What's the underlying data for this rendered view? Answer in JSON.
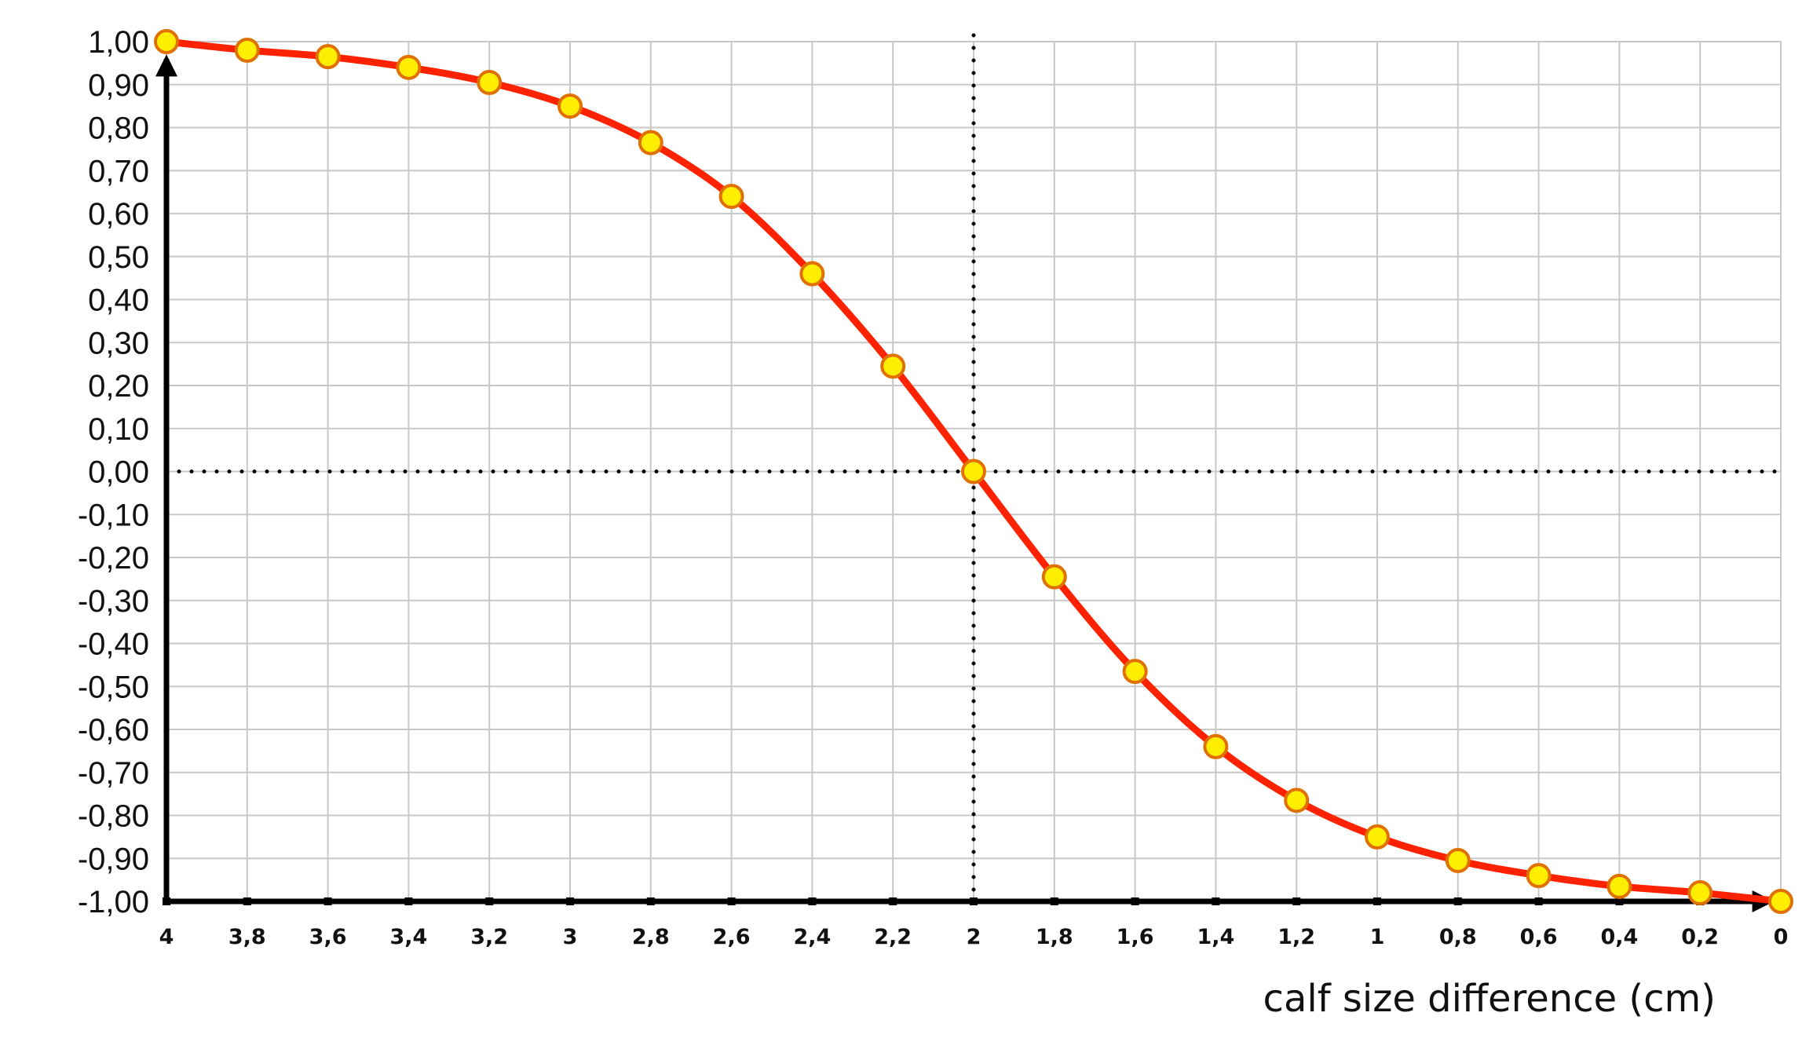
{
  "chart_data": {
    "type": "line",
    "title": "",
    "xlabel": "calf size difference (cm)",
    "ylabel": "",
    "x_reversed": true,
    "xlim": [
      4,
      0
    ],
    "ylim": [
      -1,
      1
    ],
    "grid": true,
    "x": [
      4,
      3.8,
      3.6,
      3.4,
      3.2,
      3,
      2.8,
      2.6,
      2.4,
      2.2,
      2,
      1.8,
      1.6,
      1.4,
      1.2,
      1,
      0.8,
      0.6,
      0.4,
      0.2,
      0
    ],
    "x_tick_labels": [
      "4",
      "3,8",
      "3,6",
      "3,4",
      "3,2",
      "3",
      "2,8",
      "2,6",
      "2,4",
      "2,2",
      "2",
      "1,8",
      "1,6",
      "1,4",
      "1,2",
      "1",
      "0,8",
      "0,6",
      "0,4",
      "0,2",
      "0"
    ],
    "y_ticks": [
      1,
      0.9,
      0.8,
      0.7,
      0.6,
      0.5,
      0.4,
      0.3,
      0.2,
      0.1,
      0,
      -0.1,
      -0.2,
      -0.3,
      -0.4,
      -0.5,
      -0.6,
      -0.7,
      -0.8,
      -0.9,
      -1
    ],
    "y_tick_labels": [
      "1,00",
      "0,90",
      "0,80",
      "0,70",
      "0,60",
      "0,50",
      "0,40",
      "0,30",
      "0,20",
      "0,10",
      "0,00",
      "-0,10",
      "-0,20",
      "-0,30",
      "-0,40",
      "-0,50",
      "-0,60",
      "-0,70",
      "-0,80",
      "-0,90",
      "-1,00"
    ],
    "series": [
      {
        "values": [
          1.0,
          0.98,
          0.965,
          0.94,
          0.905,
          0.85,
          0.765,
          0.64,
          0.46,
          0.245,
          0.0,
          -0.245,
          -0.465,
          -0.64,
          -0.765,
          -0.85,
          -0.905,
          -0.94,
          -0.965,
          -0.98,
          -1.0
        ],
        "line_color": "#ff2200",
        "marker_fill": "#ffee00",
        "marker_stroke": "#e07000"
      }
    ],
    "reference_lines": {
      "x": 2,
      "y": 0,
      "style": "dotted"
    }
  }
}
